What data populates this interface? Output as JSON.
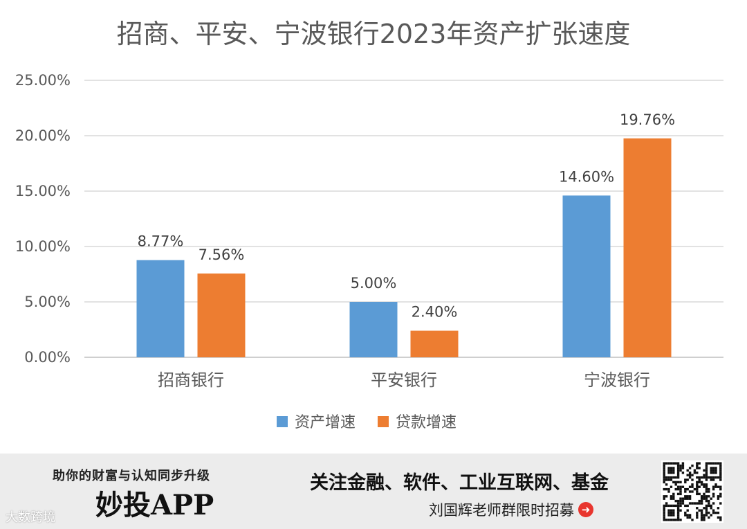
{
  "chart_data": {
    "type": "bar",
    "title": "招商、平安、宁波银行2023年资产扩张速度",
    "categories": [
      "招商银行",
      "平安银行",
      "宁波银行"
    ],
    "series": [
      {
        "name": "资产增速",
        "values": [
          8.77,
          5.0,
          14.6
        ],
        "labels": [
          "8.77%",
          "5.00%",
          "14.60%"
        ],
        "color": "#5b9bd5"
      },
      {
        "name": "贷款增速",
        "values": [
          7.56,
          2.4,
          19.76
        ],
        "labels": [
          "7.56%",
          "2.40%",
          "19.76%"
        ],
        "color": "#ed7d31"
      }
    ],
    "ylim": [
      0,
      25
    ],
    "yticks": [
      0,
      5,
      10,
      15,
      20,
      25
    ],
    "ytick_labels": [
      "0.00%",
      "5.00%",
      "10.00%",
      "15.00%",
      "20.00%",
      "25.00%"
    ],
    "grid": true,
    "legend": "bottom"
  },
  "footer": {
    "tagline": "助你的财富与认知同步升级",
    "app_name": "妙投APP",
    "focus": "关注金融、软件、工业互联网、基金",
    "recruit": "刘国辉老师群限时招募",
    "watermark": "大数跨境"
  }
}
